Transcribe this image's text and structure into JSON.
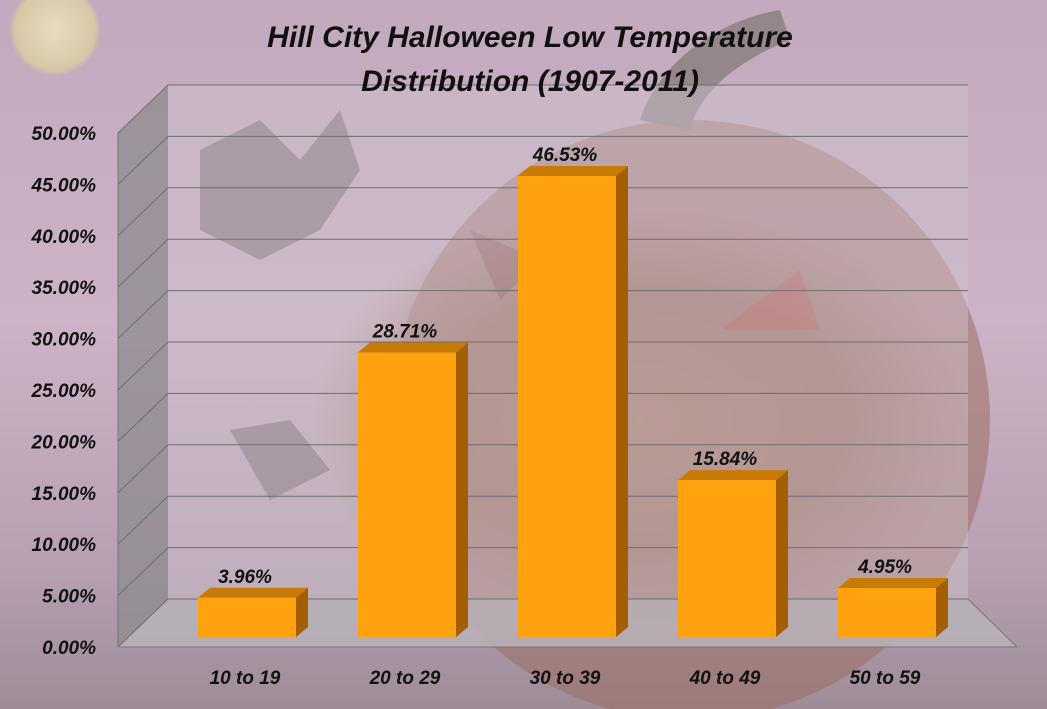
{
  "chart_data": {
    "type": "bar",
    "title": "Hill City Halloween Low Temperature Distribution (1907-2011)",
    "title_lines": [
      "Hill City Halloween Low Temperature",
      "Distribution (1907-2011)"
    ],
    "categories": [
      "10 to 19",
      "20 to 29",
      "30 to 39",
      "40 to 49",
      "50 to 59"
    ],
    "values": [
      3.96,
      28.71,
      46.53,
      15.84,
      4.95
    ],
    "data_labels": [
      "3.96%",
      "28.71%",
      "46.53%",
      "15.84%",
      "4.95%"
    ],
    "xlabel": "",
    "ylabel": "",
    "ylim": [
      0,
      50
    ],
    "y_ticks": [
      "0.00%",
      "5.00%",
      "10.00%",
      "15.00%",
      "20.00%",
      "25.00%",
      "30.00%",
      "35.00%",
      "40.00%",
      "45.00%",
      "50.00%"
    ],
    "grid": true,
    "legend": "none",
    "three_d": true,
    "colors": {
      "bar_front": "#FFA20F",
      "bar_top": "#C87A06",
      "bar_side": "#A45E00",
      "wall": "#CFC3CD",
      "side_wall": "#8E8B8E",
      "floor": "#B9B3B9",
      "gridline": "#6E6E6E"
    }
  }
}
